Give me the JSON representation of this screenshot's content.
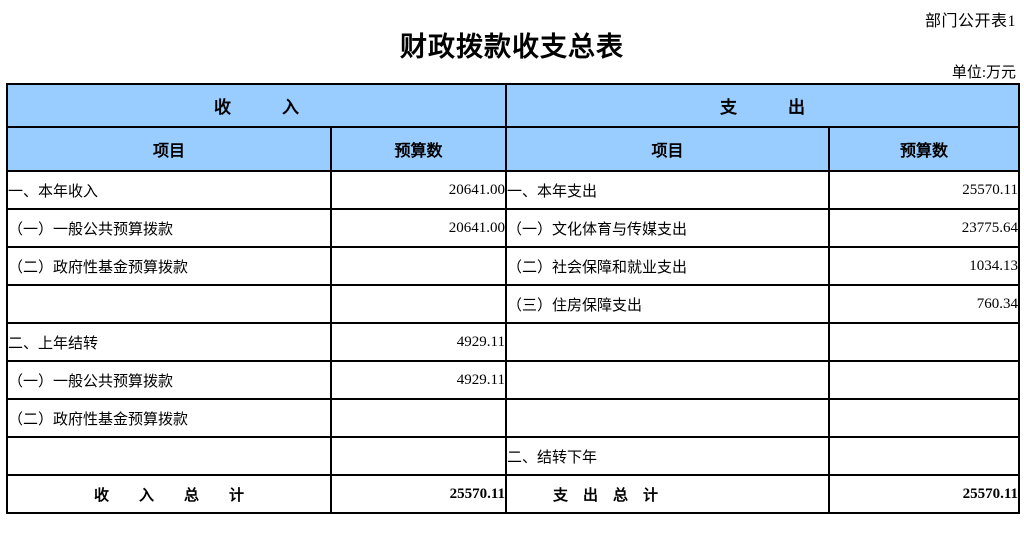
{
  "page": {
    "corner_label": "部门公开表1",
    "title": "财政拨款收支总表",
    "unit_label": "单位:万元"
  },
  "colors": {
    "header_background": "#99CCFF",
    "border": "#000000",
    "text": "#000000"
  },
  "table": {
    "income_section_title": "收　　　入",
    "expense_section_title": "支　　　出",
    "income_item_header": "项目",
    "income_value_header": "预算数",
    "expense_item_header": "项目",
    "expense_value_header": "预算数",
    "rows": [
      {
        "income_item": "一、本年收入",
        "income_value": "20641.00",
        "expense_item": "一、本年支出",
        "expense_value": "25570.11",
        "total": false
      },
      {
        "income_item": "（一）一般公共预算拨款",
        "income_value": "20641.00",
        "expense_item": "（一）文化体育与传媒支出",
        "expense_value": "23775.64",
        "total": false
      },
      {
        "income_item": "（二）政府性基金预算拨款",
        "income_value": "",
        "expense_item": "（二）社会保障和就业支出",
        "expense_value": "1034.13",
        "total": false
      },
      {
        "income_item": "",
        "income_value": "",
        "expense_item": "（三）住房保障支出",
        "expense_value": "760.34",
        "total": false
      },
      {
        "income_item": "二、上年结转",
        "income_value": "4929.11",
        "expense_item": "",
        "expense_value": "",
        "total": false
      },
      {
        "income_item": "（一）一般公共预算拨款",
        "income_value": "4929.11",
        "expense_item": "",
        "expense_value": "",
        "total": false
      },
      {
        "income_item": "（二）政府性基金预算拨款",
        "income_value": "",
        "expense_item": "",
        "expense_value": "",
        "total": false
      },
      {
        "income_item": "",
        "income_value": "",
        "expense_item": "二、结转下年",
        "expense_value": "",
        "total": false
      },
      {
        "income_item": "收　　入　　总　　计",
        "income_value": "25570.11",
        "expense_item": "支　出　总　计",
        "expense_value": "25570.11",
        "total": true
      }
    ]
  }
}
